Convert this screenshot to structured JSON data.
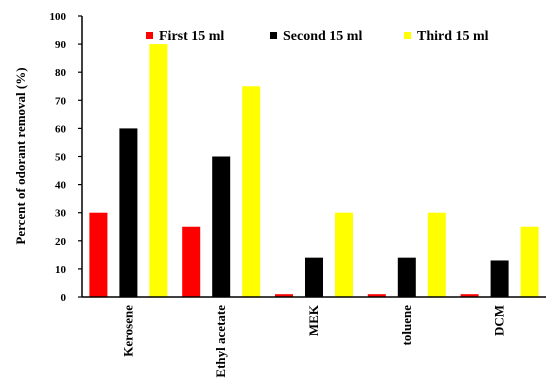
{
  "chart_data": {
    "type": "bar",
    "title": "",
    "xlabel": "",
    "ylabel": "Percent of odorant removal (%)",
    "ylim": [
      0,
      100
    ],
    "yticks": [
      0,
      10,
      20,
      30,
      40,
      50,
      60,
      70,
      80,
      90,
      100
    ],
    "categories": [
      "Kerosene",
      "Ethyl acetate",
      "MEK",
      "toluene",
      "DCM"
    ],
    "series": [
      {
        "name": "First 15 ml",
        "color": "#ff0000",
        "values": [
          30,
          25,
          1,
          1,
          1
        ]
      },
      {
        "name": "Second 15 ml",
        "color": "#000000",
        "values": [
          60,
          50,
          14,
          14,
          13
        ]
      },
      {
        "name": "Third 15 ml",
        "color": "#ffff00",
        "values": [
          90,
          75,
          30,
          30,
          25
        ]
      }
    ],
    "legend_position": "top",
    "grid": false
  }
}
